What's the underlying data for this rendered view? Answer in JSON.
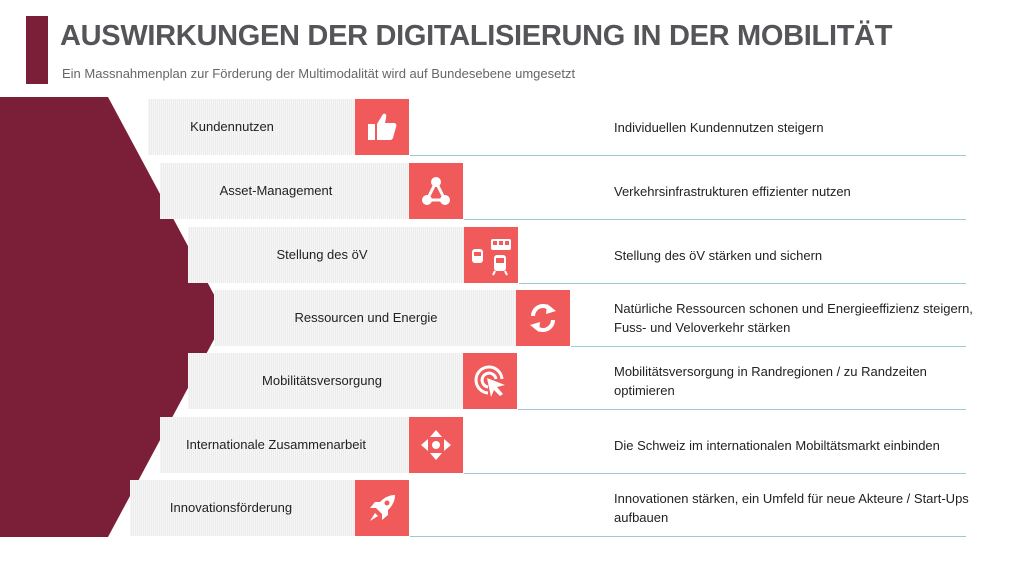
{
  "header": {
    "title": "AUSWIRKUNGEN DER DIGITALISIERUNG IN DER MOBILITÄT",
    "subtitle": "Ein Massnahmenplan zur Förderung der Multimodalität wird auf Bundesebene umgesetzt"
  },
  "colors": {
    "accent": "#7b1f38",
    "icon_background": "#f05a5a",
    "divider": "#9fc8d6"
  },
  "rows": [
    {
      "label": "Kundennutzen",
      "icon": "thumbs-up-icon",
      "description": "Individuellen Kundennutzen steigern"
    },
    {
      "label": "Asset-Management",
      "icon": "network-nodes-icon",
      "description": "Verkehrsinfrastrukturen effizienter nutzen"
    },
    {
      "label": "Stellung des öV",
      "icon": "public-transport-icon",
      "description": "Stellung des öV stärken und sichern"
    },
    {
      "label": "Ressourcen und Energie",
      "icon": "refresh-cycle-icon",
      "description": "Natürliche Ressourcen schonen und Energieeffizienz steigern, Fuss- und Veloverkehr stärken"
    },
    {
      "label": "Mobilitätsversorgung",
      "icon": "pointer-click-icon",
      "description": "Mobilitätsversorgung in Randregionen / zu Randzeiten optimieren"
    },
    {
      "label": "Internationale Zusammenarbeit",
      "icon": "move-arrows-icon",
      "description": "Die Schweiz im internationalen Mobiltätsmarkt einbinden"
    },
    {
      "label": "Innovationsförderung",
      "icon": "rocket-icon",
      "description": "Innovationen stärken, ein Umfeld für neue Akteure / Start-Ups aufbauen"
    }
  ]
}
